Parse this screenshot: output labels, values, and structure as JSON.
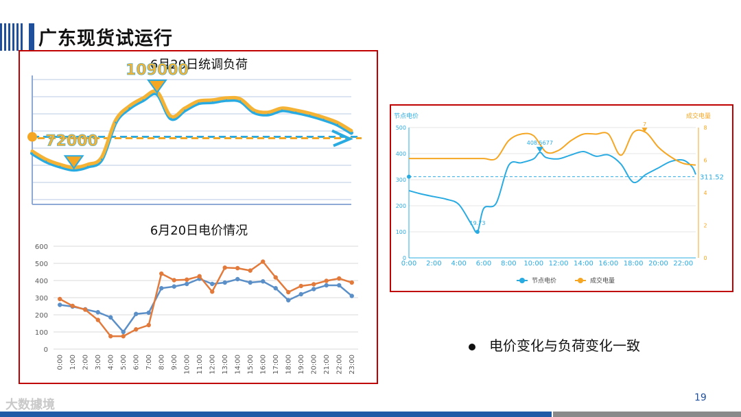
{
  "page": {
    "title": "广东现货试运行",
    "bullet": "电价变化与负荷变化一致",
    "page_number": "19",
    "watermark": "大数據境"
  },
  "colors": {
    "blue": "#1f5aa6",
    "red_border": "#c00000",
    "series_blue": "#29abe2",
    "series_orange": "#f5a623"
  },
  "chart_data": [
    {
      "type": "line",
      "title": "6月20日统调负荷",
      "annotations": [
        "109000",
        "72000"
      ],
      "x": [
        0,
        1,
        2,
        3,
        4,
        5,
        6,
        7,
        8,
        9,
        10,
        11,
        12,
        13,
        14,
        15,
        16,
        17,
        18,
        19,
        20,
        21,
        22,
        23
      ],
      "series": [
        {
          "values": [
            80000,
            76000,
            73500,
            72000,
            73500,
            77000,
            95000,
            102000,
            106000,
            109000,
            97000,
            101000,
            104500,
            105000,
            106000,
            105500,
            100000,
            99000,
            101000,
            100000,
            98500,
            96500,
            94000,
            90000
          ]
        }
      ],
      "reference_line": 88000,
      "ylim": [
        55000,
        118000
      ],
      "grid": true
    },
    {
      "type": "line",
      "title": "6月20日电价情况",
      "categories": [
        "0:00",
        "1:00",
        "2:00",
        "3:00",
        "4:00",
        "5:00",
        "6:00",
        "7:00",
        "8:00",
        "9:00",
        "10:00",
        "11:00",
        "12:00",
        "13:00",
        "14:00",
        "15:00",
        "16:00",
        "17:00",
        "18:00",
        "19:00",
        "20:00",
        "21:00",
        "22:00",
        "23:00"
      ],
      "yticks": [
        0,
        100,
        200,
        300,
        400,
        500,
        600
      ],
      "ylim": [
        0,
        600
      ],
      "series": [
        {
          "color": "#5b8fc7",
          "values": [
            258,
            248,
            232,
            215,
            185,
            100,
            205,
            212,
            355,
            365,
            380,
            410,
            380,
            388,
            408,
            388,
            395,
            355,
            285,
            320,
            350,
            372,
            372,
            310
          ]
        },
        {
          "color": "#e27a3c",
          "values": [
            292,
            252,
            230,
            170,
            75,
            75,
            115,
            140,
            440,
            402,
            405,
            425,
            335,
            475,
            472,
            458,
            510,
            418,
            332,
            368,
            378,
            398,
            412,
            388
          ]
        }
      ]
    },
    {
      "type": "line",
      "left_axis_label": "节点电价",
      "right_axis_label": "成交电量",
      "categories": [
        "0:00",
        "2:00",
        "4:00",
        "6:00",
        "8:00",
        "10:00",
        "12:00",
        "14:00",
        "16:00",
        "18:00",
        "20:00",
        "22:00"
      ],
      "yticks_left": [
        0,
        100,
        200,
        300,
        400,
        500
      ],
      "yticks_right": [
        0,
        2,
        4,
        6,
        8
      ],
      "ylim_left": [
        0,
        500
      ],
      "ylim_right": [
        0,
        8
      ],
      "annotations": [
        "408.5677",
        "311.52",
        "7",
        "19.73"
      ],
      "reference_line": 311.52,
      "legend": [
        "节点电价",
        "成交电量"
      ],
      "legend_position": "bottom",
      "series": [
        {
          "name": "节点电价",
          "axis": "left",
          "color": "#29abe2",
          "x": [
            0,
            1,
            2,
            3,
            4,
            5,
            5.5,
            6,
            7,
            8,
            9,
            10,
            10.5,
            11,
            12,
            13,
            14,
            15,
            16,
            17,
            18,
            19,
            20,
            21,
            22,
            22.7,
            23
          ],
          "values": [
            258,
            245,
            235,
            225,
            205,
            130,
            100,
            190,
            210,
            355,
            365,
            380,
            405,
            385,
            380,
            395,
            408,
            390,
            395,
            360,
            290,
            320,
            345,
            370,
            375,
            350,
            320
          ]
        },
        {
          "name": "成交电量",
          "axis": "right",
          "color": "#f5a623",
          "x": [
            0,
            1,
            2,
            3,
            4,
            5,
            6,
            7,
            8,
            9,
            10,
            11,
            12,
            13,
            14,
            15,
            16,
            17,
            18,
            19,
            20,
            21,
            22,
            23
          ],
          "values": [
            6.1,
            6.1,
            6.1,
            6.1,
            6.1,
            6.1,
            6.1,
            6.1,
            7.2,
            7.6,
            7.5,
            6.5,
            6.6,
            7.2,
            7.6,
            7.6,
            7.6,
            6.3,
            7.7,
            7.7,
            6.8,
            6.2,
            5.8,
            5.7
          ]
        }
      ]
    }
  ]
}
